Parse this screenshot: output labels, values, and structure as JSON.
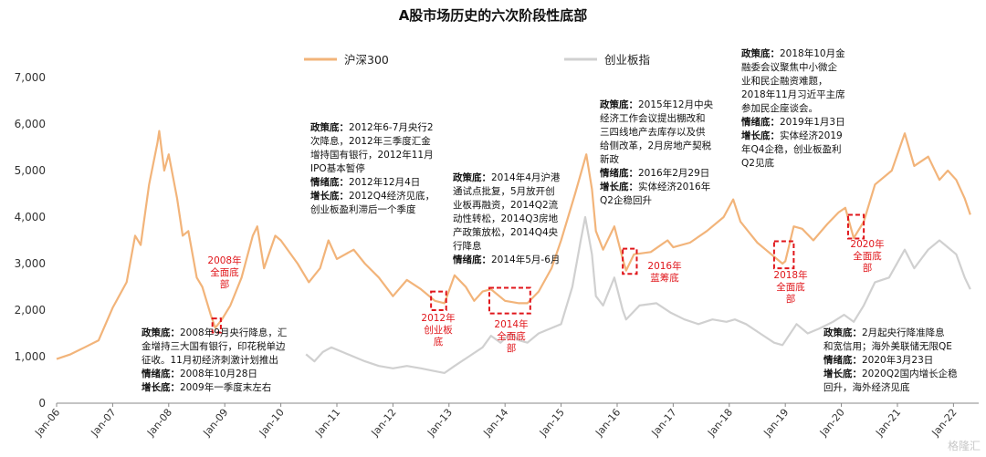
{
  "chart_data": {
    "type": "line",
    "title": "A股市场历史的六次阶段性底部",
    "ylim": [
      0,
      7000
    ],
    "yticks": [
      "0",
      "1,000",
      "2,000",
      "3,000",
      "4,000",
      "5,000",
      "6,000",
      "7,000"
    ],
    "ytick_values": [
      0,
      1000,
      2000,
      3000,
      4000,
      5000,
      6000,
      7000
    ],
    "xlim": [
      2006.0,
      2022.45
    ],
    "xticks": [
      "Jan-06",
      "Jan-07",
      "Jan-08",
      "Jan-09",
      "Jan-10",
      "Jan-11",
      "Jan-12",
      "Jan-13",
      "Jan-14",
      "Jan-15",
      "Jan-16",
      "Jan-17",
      "Jan-18",
      "Jan-19",
      "Jan-20",
      "Jan-21",
      "Jan-22"
    ],
    "xtick_values": [
      2006,
      2007,
      2008,
      2009,
      2010,
      2011,
      2012,
      2013,
      2014,
      2015,
      2016,
      2017,
      2018,
      2019,
      2020,
      2021,
      2022
    ],
    "grid": false,
    "legend_position": "top",
    "series": [
      {
        "name": "沪深300",
        "color": "#f2b47a",
        "points": [
          [
            2006.0,
            950
          ],
          [
            2006.25,
            1050
          ],
          [
            2006.5,
            1200
          ],
          [
            2006.75,
            1350
          ],
          [
            2007.0,
            2050
          ],
          [
            2007.25,
            2600
          ],
          [
            2007.4,
            3600
          ],
          [
            2007.5,
            3400
          ],
          [
            2007.65,
            4700
          ],
          [
            2007.8,
            5600
          ],
          [
            2007.83,
            5850
          ],
          [
            2007.92,
            5000
          ],
          [
            2008.0,
            5350
          ],
          [
            2008.15,
            4400
          ],
          [
            2008.25,
            3600
          ],
          [
            2008.35,
            3700
          ],
          [
            2008.5,
            2700
          ],
          [
            2008.6,
            2500
          ],
          [
            2008.75,
            1900
          ],
          [
            2008.83,
            1620
          ],
          [
            2008.95,
            1800
          ],
          [
            2009.1,
            2100
          ],
          [
            2009.3,
            2700
          ],
          [
            2009.5,
            3600
          ],
          [
            2009.58,
            3800
          ],
          [
            2009.7,
            2900
          ],
          [
            2009.9,
            3600
          ],
          [
            2010.0,
            3500
          ],
          [
            2010.3,
            3000
          ],
          [
            2010.5,
            2600
          ],
          [
            2010.7,
            2900
          ],
          [
            2010.85,
            3500
          ],
          [
            2011.0,
            3100
          ],
          [
            2011.3,
            3300
          ],
          [
            2011.5,
            3000
          ],
          [
            2011.75,
            2700
          ],
          [
            2012.0,
            2300
          ],
          [
            2012.25,
            2650
          ],
          [
            2012.5,
            2450
          ],
          [
            2012.75,
            2200
          ],
          [
            2012.92,
            2150
          ],
          [
            2013.1,
            2750
          ],
          [
            2013.3,
            2500
          ],
          [
            2013.45,
            2200
          ],
          [
            2013.6,
            2400
          ],
          [
            2013.75,
            2450
          ],
          [
            2014.0,
            2200
          ],
          [
            2014.25,
            2150
          ],
          [
            2014.4,
            2150
          ],
          [
            2014.6,
            2400
          ],
          [
            2014.83,
            2900
          ],
          [
            2015.0,
            3500
          ],
          [
            2015.25,
            4500
          ],
          [
            2015.45,
            5350
          ],
          [
            2015.55,
            4600
          ],
          [
            2015.62,
            3700
          ],
          [
            2015.75,
            3300
          ],
          [
            2015.95,
            3800
          ],
          [
            2016.1,
            3100
          ],
          [
            2016.16,
            2850
          ],
          [
            2016.3,
            3200
          ],
          [
            2016.6,
            3250
          ],
          [
            2016.9,
            3500
          ],
          [
            2017.0,
            3350
          ],
          [
            2017.3,
            3450
          ],
          [
            2017.6,
            3700
          ],
          [
            2017.9,
            4000
          ],
          [
            2018.07,
            4380
          ],
          [
            2018.2,
            3900
          ],
          [
            2018.5,
            3450
          ],
          [
            2018.75,
            3200
          ],
          [
            2018.95,
            3000
          ],
          [
            2019.0,
            3050
          ],
          [
            2019.15,
            3800
          ],
          [
            2019.3,
            3750
          ],
          [
            2019.5,
            3500
          ],
          [
            2019.75,
            3850
          ],
          [
            2019.95,
            4100
          ],
          [
            2020.07,
            4200
          ],
          [
            2020.22,
            3550
          ],
          [
            2020.4,
            3900
          ],
          [
            2020.6,
            4700
          ],
          [
            2020.9,
            5000
          ],
          [
            2021.13,
            5800
          ],
          [
            2021.3,
            5100
          ],
          [
            2021.55,
            5300
          ],
          [
            2021.75,
            4800
          ],
          [
            2021.9,
            5000
          ],
          [
            2022.05,
            4800
          ],
          [
            2022.2,
            4400
          ],
          [
            2022.3,
            4050
          ]
        ]
      },
      {
        "name": "创业板指",
        "color": "#d0d0d0",
        "points": [
          [
            2010.45,
            1050
          ],
          [
            2010.6,
            900
          ],
          [
            2010.75,
            1100
          ],
          [
            2010.9,
            1200
          ],
          [
            2011.1,
            1100
          ],
          [
            2011.3,
            1000
          ],
          [
            2011.5,
            900
          ],
          [
            2011.75,
            800
          ],
          [
            2012.0,
            750
          ],
          [
            2012.25,
            800
          ],
          [
            2012.5,
            750
          ],
          [
            2012.7,
            700
          ],
          [
            2012.92,
            650
          ],
          [
            2013.1,
            800
          ],
          [
            2013.35,
            1000
          ],
          [
            2013.6,
            1200
          ],
          [
            2013.75,
            1450
          ],
          [
            2013.92,
            1300
          ],
          [
            2014.1,
            1500
          ],
          [
            2014.25,
            1350
          ],
          [
            2014.4,
            1300
          ],
          [
            2014.6,
            1500
          ],
          [
            2014.8,
            1600
          ],
          [
            2015.0,
            1700
          ],
          [
            2015.2,
            2500
          ],
          [
            2015.35,
            3500
          ],
          [
            2015.43,
            4000
          ],
          [
            2015.55,
            3200
          ],
          [
            2015.62,
            2300
          ],
          [
            2015.75,
            2100
          ],
          [
            2015.95,
            2700
          ],
          [
            2016.1,
            2000
          ],
          [
            2016.16,
            1800
          ],
          [
            2016.4,
            2100
          ],
          [
            2016.7,
            2150
          ],
          [
            2016.95,
            1950
          ],
          [
            2017.2,
            1800
          ],
          [
            2017.45,
            1700
          ],
          [
            2017.7,
            1800
          ],
          [
            2017.95,
            1750
          ],
          [
            2018.1,
            1800
          ],
          [
            2018.3,
            1700
          ],
          [
            2018.55,
            1500
          ],
          [
            2018.8,
            1300
          ],
          [
            2018.95,
            1250
          ],
          [
            2019.2,
            1700
          ],
          [
            2019.4,
            1500
          ],
          [
            2019.6,
            1600
          ],
          [
            2019.85,
            1750
          ],
          [
            2020.05,
            1900
          ],
          [
            2020.22,
            1750
          ],
          [
            2020.4,
            2100
          ],
          [
            2020.6,
            2600
          ],
          [
            2020.85,
            2700
          ],
          [
            2021.13,
            3300
          ],
          [
            2021.3,
            2900
          ],
          [
            2021.55,
            3300
          ],
          [
            2021.75,
            3500
          ],
          [
            2021.9,
            3350
          ],
          [
            2022.05,
            3200
          ],
          [
            2022.2,
            2700
          ],
          [
            2022.3,
            2450
          ]
        ]
      }
    ],
    "bottom_markers": [
      {
        "label": "2008年\n全面底\n部",
        "x0": 2008.78,
        "x1": 2008.93,
        "y0": 1520,
        "y1": 1820
      },
      {
        "label": "2012年\n创业板\n底",
        "x0": 2012.68,
        "x1": 2012.95,
        "y0": 2000,
        "y1": 2400
      },
      {
        "label": "2014年\n全面底\n部",
        "x0": 2013.72,
        "x1": 2014.45,
        "y0": 1930,
        "y1": 2480
      },
      {
        "label": "2016年\n蓝筹底",
        "x0": 2016.1,
        "x1": 2016.35,
        "y0": 2780,
        "y1": 3320
      },
      {
        "label": "2018年\n全面底\n部",
        "x0": 2018.8,
        "x1": 2019.15,
        "y0": 2900,
        "y1": 3480
      },
      {
        "label": "2020年\n全面底\n部",
        "x0": 2020.12,
        "x1": 2020.4,
        "y0": 3540,
        "y1": 4050
      }
    ],
    "annotations": [
      {
        "rows": [
          [
            "政策底：",
            "2008年9月央行降息，汇"
          ],
          [
            "",
            "金增持三大国有银行，印花税单边"
          ],
          [
            "",
            "征收。11月初经济刺激计划推出"
          ],
          [
            "情绪底：",
            "2008年10月28日"
          ],
          [
            "增长底：",
            "2009年一季度末左右"
          ]
        ]
      },
      {
        "rows": [
          [
            "政策底：",
            "2012年6-7月央行2"
          ],
          [
            "",
            "次降息，2012年三季度汇金"
          ],
          [
            "",
            "增持国有银行，2012年11月"
          ],
          [
            "",
            "IPO基本暂停"
          ],
          [
            "情绪底：",
            "2012年12月4日"
          ],
          [
            "增长底：",
            "2012Q4经济见底，"
          ],
          [
            "",
            "创业板盈利滞后一个季度"
          ]
        ]
      },
      {
        "rows": [
          [
            "政策底：",
            "2014年4月沪港"
          ],
          [
            "",
            "通试点批复，5月放开创"
          ],
          [
            "",
            "业板再融资，2014Q2流"
          ],
          [
            "",
            "动性转松，2014Q3房地"
          ],
          [
            "",
            "产政策放松，2014Q4央"
          ],
          [
            "",
            "行降息"
          ],
          [
            "情绪底：",
            "2014年5月-6月"
          ]
        ]
      },
      {
        "rows": [
          [
            "政策底：",
            "2015年12月中央"
          ],
          [
            "",
            "经济工作会议提出棚改和"
          ],
          [
            "",
            "三四线地产去库存以及供"
          ],
          [
            "",
            "给侧改革，2月房地产契税"
          ],
          [
            "",
            "新政"
          ],
          [
            "情绪底：",
            "2016年2月29日"
          ],
          [
            "增长底：",
            "实体经济2016年"
          ],
          [
            "",
            "Q2企稳回升"
          ]
        ]
      },
      {
        "rows": [
          [
            "政策底：",
            "2018年10月金"
          ],
          [
            "",
            "融委会议聚焦中小微企"
          ],
          [
            "",
            "业和民企融资难题，"
          ],
          [
            "",
            "2018年11月习近平主席"
          ],
          [
            "",
            "参加民企座谈会。"
          ],
          [
            "情绪底：",
            "2019年1月3日"
          ],
          [
            "增长底：",
            "实体经济2019"
          ],
          [
            "",
            "年Q4企稳，创业板盈利"
          ],
          [
            "",
            "Q2见底"
          ]
        ]
      },
      {
        "rows": [
          [
            "政策底：",
            "2月起央行降准降息"
          ],
          [
            "",
            "和宽信用；海外美联储无限QE"
          ],
          [
            "情绪底：",
            "2020年3月23日"
          ],
          [
            "增长底：",
            "2020Q2国内增长企稳"
          ],
          [
            "",
            "回升，海外经济见底"
          ]
        ]
      }
    ]
  },
  "watermark": "格隆汇"
}
